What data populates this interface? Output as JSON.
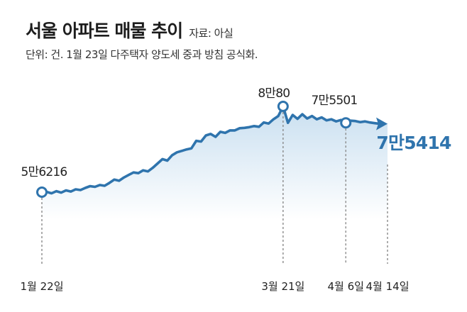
{
  "header": {
    "title": "서울 아파트 매물 추이",
    "source": "자료: 아실",
    "subtitle": "단위: 건. 1월 23일 다주택자 양도세 중과 방침 공식화."
  },
  "colors": {
    "line": "#2f74ad",
    "area_top": "#c9dff0",
    "area_bottom": "#ffffff",
    "guide": "#8a8a8a",
    "last_label": "#2f74ad"
  },
  "chart_data": {
    "type": "line",
    "title": "서울 아파트 매물 추이",
    "units": "건",
    "x_start": "1월 22일",
    "x_end": "4월 14일",
    "ylim": [
      52000,
      85000
    ],
    "values": [
      56216,
      56300,
      55900,
      56500,
      56100,
      56700,
      56400,
      57000,
      56800,
      57400,
      57900,
      57700,
      58200,
      58000,
      58800,
      59700,
      59400,
      60300,
      61000,
      61700,
      61500,
      62300,
      62000,
      63000,
      64200,
      65400,
      65000,
      66500,
      67300,
      67700,
      68100,
      68400,
      70500,
      70300,
      72000,
      72400,
      71600,
      73000,
      72700,
      73400,
      73400,
      74000,
      74100,
      74300,
      74600,
      74400,
      75600,
      75300,
      76500,
      77400,
      80080,
      75500,
      77700,
      76600,
      77900,
      76700,
      77400,
      76500,
      77000,
      76200,
      76500,
      75900,
      76300,
      75501,
      76100,
      76000,
      75700,
      75900,
      75600,
      75414
    ],
    "annotations": [
      {
        "index": 0,
        "label": "5만6216",
        "x_label": "1월 22일",
        "marker": true
      },
      {
        "index": 50,
        "label": "8만80",
        "x_label": "3월 21일",
        "marker": true
      },
      {
        "index": 63,
        "label": "7만5501",
        "x_label": "4월 6일",
        "marker": true
      },
      {
        "index": 69,
        "label": "7만5414",
        "x_label": "4월 14일",
        "marker": false,
        "highlight": true
      }
    ],
    "grid": false,
    "legend": "none"
  }
}
